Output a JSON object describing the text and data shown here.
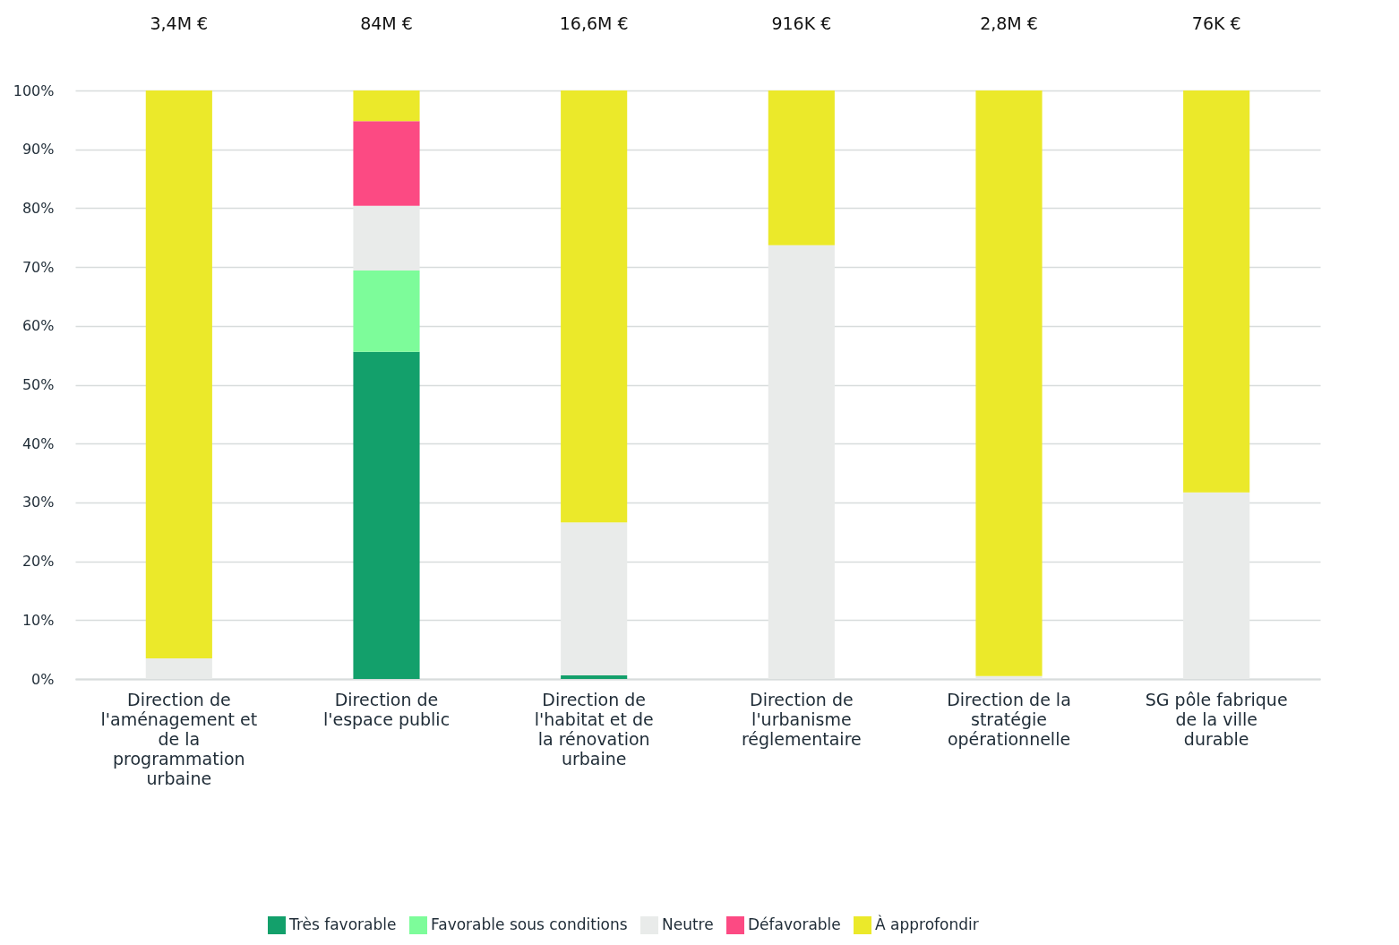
{
  "chart_data": {
    "type": "bar",
    "stacked": true,
    "categories": [
      "Direction de l'aménagement et de la programmation urbaine",
      "Direction de l'espace public",
      "Direction de l'habitat et de la rénovation urbaine",
      "Direction de l'urbanisme réglementaire",
      "Direction de la stratégie opérationnelle",
      "SG pôle fabrique de la ville durable"
    ],
    "series": [
      {
        "name": "Très favorable",
        "color": "#13a06b",
        "values": [
          0,
          55.6,
          0.6,
          0,
          0,
          0
        ]
      },
      {
        "name": "Favorable sous conditions",
        "color": "#7dfc9a",
        "values": [
          0,
          13.8,
          0,
          0,
          0,
          0
        ]
      },
      {
        "name": "Neutre",
        "color": "#e9ebea",
        "values": [
          3.5,
          11.0,
          26.0,
          73.7,
          0.5,
          31.7
        ]
      },
      {
        "name": "Défavorable",
        "color": "#fc4a83",
        "values": [
          0,
          14.4,
          0,
          0,
          0,
          0
        ]
      },
      {
        "name": "À approfondir",
        "color": "#ebe92a",
        "values": [
          96.5,
          5.2,
          73.4,
          26.3,
          99.5,
          68.3
        ]
      }
    ],
    "annotations": [
      "3,4M €",
      "84M €",
      "16,6M €",
      "916K €",
      "2,8M €",
      "76K €"
    ],
    "ylim": [
      0,
      100
    ],
    "yticks": [
      {
        "value": 0,
        "label": "0%"
      },
      {
        "value": 10,
        "label": "10%"
      },
      {
        "value": 20,
        "label": "20%"
      },
      {
        "value": 30,
        "label": "30%"
      },
      {
        "value": 40,
        "label": "40%"
      },
      {
        "value": 50,
        "label": "50%"
      },
      {
        "value": 60,
        "label": "60%"
      },
      {
        "value": 70,
        "label": "70%"
      },
      {
        "value": 80,
        "label": "80%"
      },
      {
        "value": 90,
        "label": "90%"
      },
      {
        "value": 100,
        "label": "100%"
      }
    ],
    "grid": "y",
    "legend": "bottom"
  }
}
